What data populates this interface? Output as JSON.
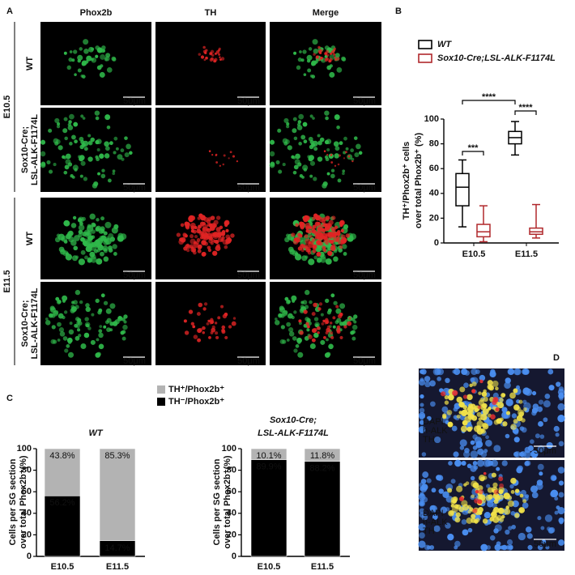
{
  "figure": {
    "panel_labels": [
      "A",
      "B",
      "C",
      "D"
    ],
    "panel_a": {
      "columns": [
        {
          "label": "Phox2b",
          "color": "#2fb84a"
        },
        {
          "label": "TH",
          "color": "#e02424"
        },
        {
          "label": "Merge",
          "color": "#111111"
        }
      ],
      "stages": [
        "E10.5",
        "E11.5"
      ],
      "rows": [
        [
          "WT"
        ],
        [
          "Sox10-Cre;",
          "LSL-ALK-F1174L"
        ],
        [
          "WT"
        ],
        [
          "Sox10-Cre;",
          "LSL-ALK-F1174L"
        ]
      ],
      "scale_bar": "50μm"
    },
    "panel_d": {
      "labels": [
        {
          "text": "DAPI",
          "color": "#4a8ef0"
        },
        {
          "text": "h-ALK",
          "color": "#f2e34a"
        },
        {
          "text": "TH",
          "color": "#e83030"
        }
      ],
      "scale_bar": "50μm"
    }
  },
  "chart_data": [
    {
      "type": "box",
      "y_label": [
        "TH⁺/Phox2b⁺ cells",
        "over total Phox2b⁺ (%)"
      ],
      "categories": [
        "E10.5",
        "E11.5"
      ],
      "series": [
        {
          "name": "WT",
          "color": "#000000",
          "values": [
            {
              "min": 13,
              "q1": 30,
              "median": 45,
              "q3": 56,
              "max": 67
            },
            {
              "min": 71,
              "q1": 80,
              "median": 85,
              "q3": 90,
              "max": 98
            }
          ]
        },
        {
          "name": "Sox10-Cre;LSL-ALK-F1174L",
          "color": "#b0282c",
          "values": [
            {
              "min": 1,
              "q1": 5,
              "median": 9,
              "q3": 15,
              "max": 30
            },
            {
              "min": 4,
              "q1": 7,
              "median": 9,
              "q3": 12,
              "max": 31
            }
          ]
        }
      ],
      "annotations": [
        "***",
        "****",
        "****"
      ],
      "ylim": [
        0,
        100
      ],
      "yticks": [
        0,
        20,
        40,
        60,
        80,
        100
      ]
    },
    {
      "type": "stacked_bar",
      "title": [
        "WT"
      ],
      "y_label": [
        "Cells per SG section",
        "over total Phox2b⁺(%)"
      ],
      "categories": [
        "E10.5",
        "E11.5"
      ],
      "series": [
        {
          "name": "TH⁻/Phox2b⁺",
          "color": "#000000",
          "values": [
            56.2,
            14.7
          ],
          "value_labels": [
            "56.2%",
            "14.7%"
          ]
        },
        {
          "name": "TH⁺/Phox2b⁺",
          "color": "#b3b3b3",
          "values": [
            43.8,
            85.3
          ],
          "value_labels": [
            "43.8%",
            "85.3%"
          ]
        }
      ],
      "ylim": [
        0,
        100
      ],
      "yticks": [
        0,
        20,
        40,
        60,
        80,
        100
      ]
    },
    {
      "type": "stacked_bar",
      "title": [
        "Sox10-Cre;",
        "LSL-ALK-F1174L"
      ],
      "y_label": [
        "Cells per SG section",
        "over total Phox2b⁺(%)"
      ],
      "categories": [
        "E10.5",
        "E11.5"
      ],
      "series": [
        {
          "color": "#000000",
          "values": [
            89.9,
            88.2
          ],
          "value_labels": [
            "89.9%",
            "88.2%"
          ]
        },
        {
          "color": "#b3b3b3",
          "values": [
            10.1,
            11.8
          ],
          "value_labels": [
            "10.1%",
            "11.8%"
          ]
        }
      ],
      "ylim": [
        0,
        100
      ],
      "yticks": [
        0,
        20,
        40,
        60,
        80,
        100
      ]
    }
  ]
}
